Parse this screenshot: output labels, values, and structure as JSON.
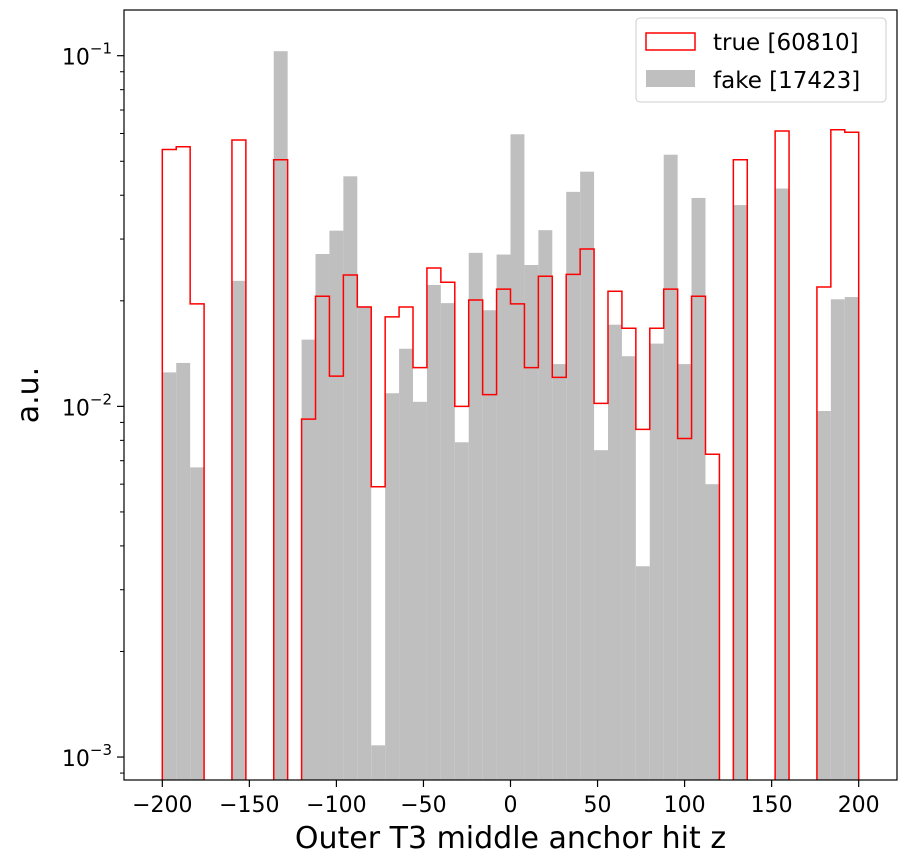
{
  "chart_data": {
    "type": "bar",
    "histtype": "overlaid step + filled histogram",
    "xlabel": "Outer T3 middle anchor hit z",
    "ylabel": "a.u.",
    "xlim": [
      -222,
      222
    ],
    "ylim": [
      0.00086,
      0.135
    ],
    "yscale": "log",
    "grid": false,
    "legend_position": "top-right",
    "x_ticks": [
      -200,
      -150,
      -100,
      -50,
      0,
      50,
      100,
      150,
      200
    ],
    "x_tick_labels": [
      "−200",
      "−150",
      "−100",
      "−50",
      "0",
      "50",
      "100",
      "150",
      "200"
    ],
    "y_ticks": [
      0.001,
      0.01,
      0.1
    ],
    "y_tick_labels": [
      {
        "base": "10",
        "exp": "−3"
      },
      {
        "base": "10",
        "exp": "−2"
      },
      {
        "base": "10",
        "exp": "−1"
      }
    ],
    "bin_edges": [
      -200,
      -192,
      -184,
      -176,
      -168,
      -160,
      -152,
      -144,
      -136,
      -128,
      -120,
      -112,
      -104,
      -96,
      -88,
      -80,
      -72,
      -64,
      -56,
      -48,
      -40,
      -32,
      -24,
      -16,
      -8,
      0,
      8,
      16,
      24,
      32,
      40,
      48,
      56,
      64,
      72,
      80,
      88,
      96,
      104,
      112,
      120,
      128,
      136,
      144,
      152,
      160,
      168,
      176,
      184,
      192,
      200
    ],
    "series": [
      {
        "name": "true [60810]",
        "style": "step",
        "color": "#ff0000",
        "values": [
          0.054,
          0.055,
          0.0196,
          0,
          0,
          0.0575,
          0,
          0,
          0.0505,
          0,
          0.0092,
          0.0206,
          0.0122,
          0.0237,
          0.0192,
          0.0059,
          0.018,
          0.0192,
          0.0129,
          0.0248,
          0.0226,
          0.01,
          0.0201,
          0.0108,
          0.0216,
          0.0196,
          0.0129,
          0.0235,
          0.0121,
          0.0238,
          0.0281,
          0.0102,
          0.0213,
          0.0167,
          0.0086,
          0.0167,
          0.0216,
          0.0081,
          0.0206,
          0.0073,
          0,
          0.0505,
          0,
          0,
          0.061,
          0,
          0,
          0.0219,
          0.0615,
          0.0605
        ]
      },
      {
        "name": "fake [17423]",
        "style": "filled",
        "color": "#bfbfbf",
        "values": [
          0.0125,
          0.0133,
          0.0067,
          0,
          0,
          0.0228,
          0,
          0,
          0.103,
          0,
          0.0155,
          0.0272,
          0.0317,
          0.0453,
          0.0193,
          0.00108,
          0.0109,
          0.0146,
          0.0103,
          0.0222,
          0.0197,
          0.0079,
          0.0274,
          0.0188,
          0.0271,
          0.0597,
          0.0253,
          0.0318,
          0.0132,
          0.0409,
          0.0467,
          0.0075,
          0.0171,
          0.0139,
          0.0035,
          0.0151,
          0.0522,
          0.0132,
          0.0393,
          0.006,
          0,
          0.0375,
          0,
          0,
          0.0418,
          0,
          0,
          0.0097,
          0.0202,
          0.0205
        ]
      }
    ]
  }
}
